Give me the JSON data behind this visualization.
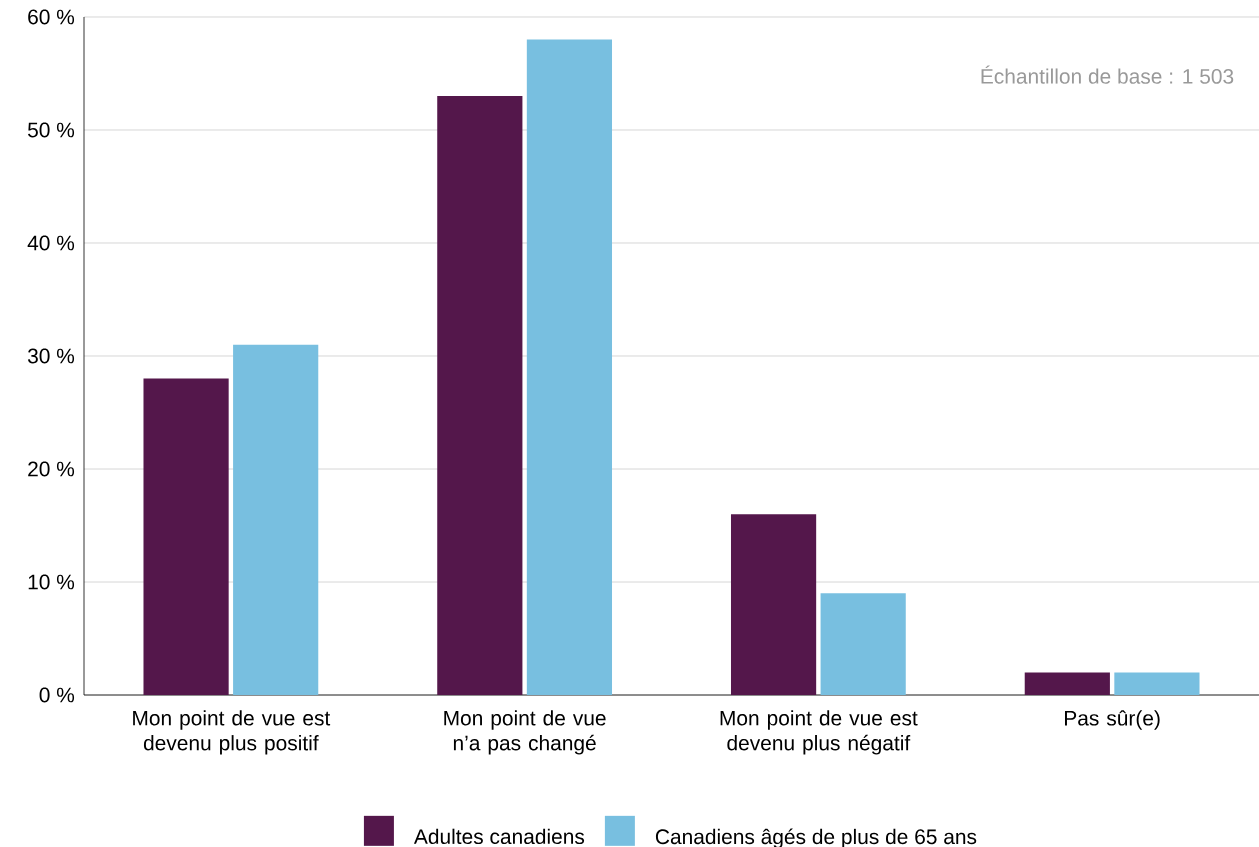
{
  "chart_data": {
    "type": "bar",
    "categories": [
      "Mon point de vue est devenu plus positif",
      "Mon point de vue n’a pas changé",
      "Mon point de vue est devenu plus négatif",
      "Pas sûr(e)"
    ],
    "series": [
      {
        "name": "Adultes canadiens",
        "color": "#54174b",
        "values": [
          28,
          53,
          16,
          2
        ]
      },
      {
        "name": "Canadiens âgés de plus de 65 ans",
        "color": "#78bfe0",
        "values": [
          31,
          58,
          9,
          2
        ]
      }
    ],
    "ylim": [
      0,
      60
    ],
    "yticks": [
      {
        "value": 0,
        "label": "0 %"
      },
      {
        "value": 10,
        "label": "10 %"
      },
      {
        "value": 20,
        "label": "20 %"
      },
      {
        "value": 30,
        "label": "30 %"
      },
      {
        "value": 40,
        "label": "40 %"
      },
      {
        "value": 50,
        "label": "50 %"
      },
      {
        "value": 60,
        "label": "60 %"
      }
    ],
    "grid": "y",
    "legend": "bottom",
    "annotations": [
      "Échantillon de base : 1 503"
    ]
  }
}
